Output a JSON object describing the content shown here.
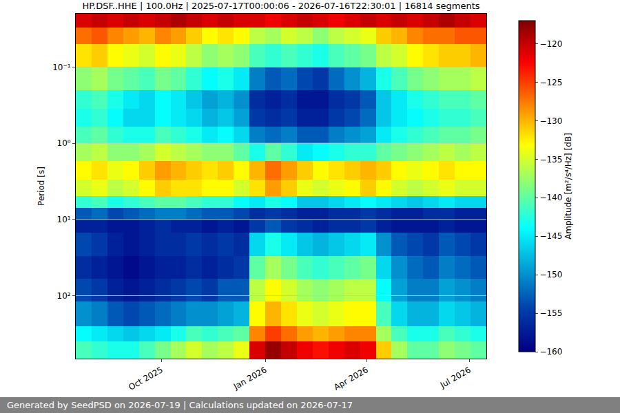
{
  "chart_data": {
    "type": "heatmap",
    "title": "HP.DSF..HHE | 100.0Hz | 2025-07-17T00:00:06 - 2026-07-16T22:30:01 | 16814 segments",
    "ylabel": "Period [s]",
    "footer": "Generated by SeedPSD on 2026-07-19 | Calculations updated on 2026-07-17",
    "log": "y",
    "grid": "y",
    "color": "jet",
    "xlim": [
      "2025-07-17",
      "2026-07-16"
    ],
    "xticks": [
      {
        "value": "2025-10-01",
        "label": "Oct 2025"
      },
      {
        "value": "2026-01-01",
        "label": "Jan 2026"
      },
      {
        "value": "2026-04-01",
        "label": "Apr 2026"
      },
      {
        "value": "2026-07-01",
        "label": "Jul 2026"
      }
    ],
    "ylim": [
      670,
      0.02
    ],
    "yticks": [
      {
        "value": 0.1,
        "label": "10⁻¹"
      },
      {
        "value": 1,
        "label": "10⁰"
      },
      {
        "value": 10,
        "label": "10¹"
      },
      {
        "value": 100,
        "label": "10²"
      }
    ],
    "x": [
      "2025-07-24",
      "2025-08-07",
      "2025-08-21",
      "2025-09-04",
      "2025-09-18",
      "2025-10-02",
      "2025-10-16",
      "2025-10-30",
      "2025-11-13",
      "2025-11-27",
      "2025-12-11",
      "2025-12-25",
      "2026-01-08",
      "2026-01-22",
      "2026-02-05",
      "2026-02-19",
      "2026-03-05",
      "2026-03-19",
      "2026-04-02",
      "2026-04-16",
      "2026-04-30",
      "2026-05-14",
      "2026-05-28",
      "2026-06-11",
      "2026-06-25",
      "2026-07-09"
    ],
    "y_edges": [
      0.02,
      0.03,
      0.05,
      0.1,
      0.2,
      0.35,
      0.6,
      1,
      1.7,
      3,
      5,
      7,
      10,
      15,
      30,
      60,
      120,
      250,
      400,
      670
    ],
    "cells": [
      [
        -121,
        -120,
        -121,
        -120,
        -121,
        -120,
        -119,
        -120,
        -121,
        -120,
        -121,
        -121,
        -122,
        -121,
        -120,
        -121,
        -122,
        -121,
        -120,
        -121,
        -120,
        -121,
        -120,
        -119,
        -120,
        -121
      ],
      [
        -127,
        -126,
        -128,
        -129,
        -130,
        -128,
        -129,
        -131,
        -133,
        -132,
        -133,
        -136,
        -137,
        -135,
        -136,
        -138,
        -136,
        -135,
        -134,
        -131,
        -130,
        -128,
        -127,
        -127,
        -126,
        -126
      ],
      [
        -132,
        -131,
        -133,
        -134,
        -135,
        -133,
        -134,
        -136,
        -138,
        -137,
        -138,
        -141,
        -142,
        -141,
        -142,
        -143,
        -141,
        -140,
        -139,
        -136,
        -135,
        -133,
        -132,
        -131,
        -131,
        -130
      ],
      [
        -138,
        -137,
        -139,
        -140,
        -141,
        -139,
        -140,
        -142,
        -144,
        -143,
        -145,
        -151,
        -153,
        -152,
        -154,
        -155,
        -152,
        -150,
        -148,
        -143,
        -141,
        -139,
        -138,
        -137,
        -137,
        -136
      ],
      [
        -142,
        -141,
        -143,
        -145,
        -146,
        -144,
        -145,
        -147,
        -149,
        -148,
        -150,
        -156,
        -157,
        -156,
        -158,
        -158,
        -156,
        -155,
        -153,
        -147,
        -145,
        -143,
        -142,
        -141,
        -141,
        -140
      ],
      [
        -143,
        -142,
        -144,
        -146,
        -146,
        -144,
        -145,
        -146,
        -148,
        -147,
        -149,
        -155,
        -156,
        -155,
        -157,
        -157,
        -155,
        -154,
        -152,
        -147,
        -145,
        -144,
        -143,
        -142,
        -142,
        -141
      ],
      [
        -141,
        -140,
        -142,
        -143,
        -143,
        -141,
        -142,
        -143,
        -145,
        -144,
        -146,
        -151,
        -152,
        -151,
        -153,
        -153,
        -151,
        -150,
        -149,
        -145,
        -143,
        -142,
        -141,
        -140,
        -140,
        -139
      ],
      [
        -137,
        -136,
        -138,
        -138,
        -137,
        -135,
        -136,
        -137,
        -138,
        -138,
        -140,
        -143,
        -140,
        -142,
        -145,
        -144,
        -143,
        -142,
        -142,
        -140,
        -139,
        -138,
        -137,
        -136,
        -137,
        -136
      ],
      [
        -133,
        -132,
        -134,
        -133,
        -131,
        -129,
        -130,
        -131,
        -132,
        -131,
        -133,
        -130,
        -127,
        -129,
        -131,
        -133,
        -132,
        -131,
        -130,
        -131,
        -133,
        -134,
        -133,
        -132,
        -133,
        -133
      ],
      [
        -135,
        -134,
        -136,
        -135,
        -133,
        -131,
        -132,
        -132,
        -133,
        -133,
        -135,
        -132,
        -129,
        -131,
        -134,
        -135,
        -134,
        -133,
        -131,
        -133,
        -135,
        -136,
        -135,
        -134,
        -135,
        -135
      ],
      [
        -142,
        -141,
        -143,
        -142,
        -141,
        -140,
        -140,
        -141,
        -142,
        -142,
        -144,
        -145,
        -143,
        -144,
        -147,
        -147,
        -146,
        -145,
        -144,
        -145,
        -146,
        -147,
        -146,
        -145,
        -146,
        -146
      ],
      [
        -153,
        -152,
        -154,
        -153,
        -152,
        -151,
        -151,
        -152,
        -153,
        -153,
        -154,
        -156,
        -155,
        -156,
        -157,
        -157,
        -156,
        -156,
        -155,
        -156,
        -157,
        -157,
        -156,
        -156,
        -157,
        -157
      ],
      [
        -157,
        -157,
        -158,
        -158,
        -157,
        -156,
        -157,
        -157,
        -158,
        -157,
        -158,
        -155,
        -153,
        -155,
        -156,
        -157,
        -156,
        -156,
        -155,
        -157,
        -158,
        -158,
        -158,
        -157,
        -158,
        -158
      ],
      [
        -154,
        -155,
        -157,
        -158,
        -157,
        -156,
        -156,
        -155,
        -156,
        -155,
        -156,
        -146,
        -143,
        -145,
        -147,
        -148,
        -147,
        -146,
        -145,
        -150,
        -153,
        -154,
        -155,
        -153,
        -154,
        -155
      ],
      [
        -156,
        -157,
        -158,
        -159,
        -158,
        -157,
        -157,
        -156,
        -157,
        -156,
        -155,
        -140,
        -137,
        -139,
        -141,
        -142,
        -141,
        -140,
        -139,
        -146,
        -150,
        -152,
        -153,
        -151,
        -152,
        -153
      ],
      [
        -154,
        -155,
        -157,
        -158,
        -157,
        -156,
        -155,
        -154,
        -155,
        -153,
        -153,
        -136,
        -133,
        -135,
        -137,
        -138,
        -137,
        -136,
        -136,
        -144,
        -149,
        -151,
        -151,
        -149,
        -150,
        -151
      ],
      [
        -150,
        -151,
        -153,
        -154,
        -153,
        -152,
        -151,
        -150,
        -150,
        -149,
        -148,
        -133,
        -130,
        -132,
        -134,
        -135,
        -134,
        -133,
        -133,
        -141,
        -146,
        -148,
        -148,
        -146,
        -147,
        -148
      ],
      [
        -144,
        -145,
        -146,
        -147,
        -146,
        -145,
        -143,
        -141,
        -142,
        -141,
        -140,
        -128,
        -125,
        -127,
        -129,
        -130,
        -129,
        -128,
        -128,
        -137,
        -141,
        -143,
        -143,
        -141,
        -142,
        -143
      ],
      [
        -141,
        -142,
        -143,
        -143,
        -141,
        -139,
        -137,
        -135,
        -137,
        -136,
        -134,
        -121,
        -118,
        -120,
        -122,
        -123,
        -122,
        -121,
        -122,
        -131,
        -137,
        -140,
        -140,
        -138,
        -139,
        -140
      ]
    ],
    "colorbar": {
      "title": "Amplitude [m²/s⁴/Hz] [dB]",
      "range": [
        -160,
        -117
      ],
      "ticks": [
        -160,
        -155,
        -150,
        -145,
        -140,
        -135,
        -130,
        -125,
        -120
      ]
    }
  }
}
